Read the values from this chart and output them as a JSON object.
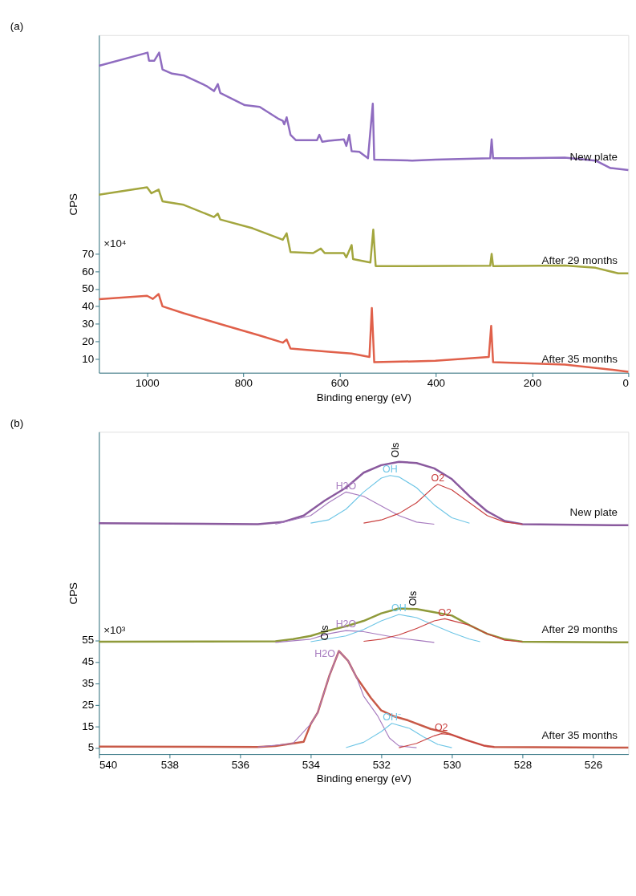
{
  "chart_data": [
    {
      "type": "line",
      "title": "(a)",
      "xlabel": "Binding energy (eV)",
      "ylabel": "CPS",
      "xlim": [
        1100,
        0
      ],
      "ylim": [
        2,
        195
      ],
      "xticks": [
        1000,
        800,
        600,
        400,
        200,
        0
      ],
      "yticks": [
        10,
        20,
        30,
        40,
        50,
        60,
        70
      ],
      "annotations": [
        "×10⁴"
      ],
      "series": [
        {
          "name": "New plate",
          "color": "#8f6cc0",
          "x": [
            1100,
            999,
            996,
            985,
            975,
            968,
            948,
            924,
            877,
            861,
            853,
            848,
            797,
            766,
            726,
            718,
            715,
            710,
            702,
            691,
            647,
            642,
            636,
            623,
            591,
            586,
            580,
            575,
            559,
            541,
            531,
            528,
            449,
            401,
            287,
            284,
            281,
            227,
            132,
            68,
            37,
            0
          ],
          "values": [
            177.5,
            185,
            180.4,
            180.4,
            185,
            175.4,
            173,
            172,
            166,
            163,
            167,
            162,
            155,
            154,
            147,
            146,
            144,
            148,
            138,
            135,
            135,
            138,
            134,
            134.6,
            135.4,
            131.7,
            138,
            128.7,
            128.3,
            124.6,
            155.8,
            123.8,
            123.3,
            123.8,
            124.6,
            135.4,
            124.6,
            124.6,
            125,
            123.3,
            119,
            117.9
          ]
        },
        {
          "name": "After 29 months",
          "color": "#a3a63e",
          "x": [
            1100,
            1000,
            991,
            976,
            968,
            924,
            861,
            853,
            848,
            781,
            718,
            710,
            702,
            655,
            639,
            631,
            591,
            586,
            575,
            572,
            536,
            530,
            525,
            449,
            287,
            284,
            281,
            132,
            68,
            21,
            0
          ],
          "values": [
            103.8,
            108,
            104.6,
            106.7,
            100,
            98,
            91,
            93,
            89.6,
            84.6,
            78,
            81.7,
            71,
            70.4,
            73,
            70.4,
            70.4,
            68,
            75,
            67,
            65,
            83.8,
            63,
            63,
            63.2,
            70,
            63,
            63.3,
            62,
            58.8,
            58.8
          ]
        },
        {
          "name": "After 35 months",
          "color": "#e0604a",
          "x": [
            1100,
            1000,
            988,
            976,
            968,
            924,
            845,
            766,
            718,
            710,
            702,
            623,
            575,
            538,
            533,
            528,
            401,
            290,
            285,
            281,
            132,
            37,
            0
          ],
          "values": [
            44,
            46,
            44.2,
            47,
            40,
            36,
            29.6,
            23.3,
            19.2,
            21,
            15.8,
            14,
            13,
            11,
            39,
            8,
            8.8,
            11,
            28.8,
            8,
            6.7,
            3.8,
            2.5
          ]
        }
      ]
    },
    {
      "type": "line",
      "title": "(b)",
      "xlabel": "Binding energy (eV)",
      "ylabel": "CPS",
      "xlim": [
        540,
        525
      ],
      "ylim": [
        2,
        152
      ],
      "xticks": [
        540,
        538,
        536,
        534,
        532,
        530,
        528,
        526
      ],
      "yticks": [
        5,
        15,
        25,
        35,
        45,
        55
      ],
      "annotations": [
        "×10³",
        {
          "text": "Ols",
          "x": 531.6,
          "y": 140
        },
        {
          "text": "Ols",
          "x": 531.1,
          "y": 71
        },
        {
          "text": "Ols",
          "x": 533.6,
          "y": 55
        }
      ],
      "series": [
        {
          "name": "New plate",
          "color": "#8a5a9e",
          "x": [
            540,
            535.5,
            534.8,
            534.2,
            533.6,
            533,
            532.5,
            532,
            531.5,
            531,
            530.5,
            530,
            529.5,
            529,
            528.5,
            528,
            525
          ],
          "values": [
            109.5,
            109,
            110,
            113,
            120,
            126,
            133,
            136.5,
            138,
            137.5,
            135,
            130,
            122,
            115,
            110.5,
            109,
            108.5
          ]
        },
        {
          "name": "H2O",
          "color": "#a77bbf",
          "x": [
            535,
            534,
            533.5,
            533,
            532.5,
            532,
            531.5,
            531,
            530.5
          ],
          "values": [
            109,
            113,
            119,
            124,
            122,
            117.5,
            113,
            110,
            109
          ]
        },
        {
          "name": "OH",
          "color": "#6fc6e6",
          "x": [
            534,
            533.5,
            533,
            532.5,
            532,
            531.75,
            531.5,
            531,
            530.5,
            530,
            529.5
          ],
          "values": [
            109.5,
            111,
            116,
            124,
            130.5,
            131.7,
            131,
            126,
            118,
            112,
            109.5
          ]
        },
        {
          "name": "O2",
          "color": "#c9403f",
          "x": [
            532.5,
            532,
            531.5,
            531,
            530.5,
            530.4,
            530,
            529.5,
            529,
            528.5,
            528
          ],
          "values": [
            109.5,
            111,
            114,
            119,
            126.5,
            127.6,
            125,
            119,
            113,
            110,
            109
          ]
        },
        {
          "name": "After 29 months",
          "color": "#8f9a3a",
          "x": [
            540,
            535,
            534.5,
            534,
            533.5,
            533,
            532.5,
            532,
            531.5,
            531,
            530.5,
            530,
            529.5,
            529,
            528.5,
            528,
            525
          ],
          "values": [
            54.3,
            54.5,
            55.5,
            57,
            59.5,
            61.5,
            64,
            67.5,
            69.8,
            69.5,
            68,
            66.5,
            62,
            58,
            55.5,
            54.3,
            54
          ]
        },
        {
          "name": "H2O",
          "color": "#a77bbf",
          "x": [
            535,
            534,
            533.5,
            533,
            532.5,
            532,
            531.5,
            531,
            530.5
          ],
          "values": [
            54,
            55.5,
            58,
            59.5,
            59,
            57.5,
            56,
            55,
            54
          ]
        },
        {
          "name": "OH",
          "color": "#6fc6e6",
          "x": [
            534,
            533,
            532.5,
            532,
            531.5,
            531,
            530.5,
            530,
            529.5,
            529.2
          ],
          "values": [
            54.3,
            57,
            60,
            64,
            67,
            65.5,
            62,
            58.5,
            55.5,
            54.3
          ]
        },
        {
          "name": "O2",
          "color": "#c9403f",
          "x": [
            532.5,
            532,
            531.5,
            531,
            530.5,
            530.2,
            529.5,
            529,
            528.5,
            528
          ],
          "values": [
            54.5,
            55.5,
            57.5,
            60.5,
            64,
            65,
            62,
            58,
            55,
            54.3
          ]
        },
        {
          "name": "After 35 months",
          "color": "#c85a48",
          "x": [
            540,
            535.5,
            535,
            534.5,
            534.2,
            534,
            533.8,
            533.47,
            533.2,
            532.94,
            532.7,
            532.3,
            532,
            531.66,
            531.24,
            530.6,
            530.17,
            529.6,
            529.1,
            528.8,
            525
          ],
          "values": [
            5.5,
            5.3,
            5.8,
            7,
            7.7,
            16,
            21.4,
            38.6,
            50,
            45.4,
            37.7,
            28.3,
            22.3,
            19.7,
            17.7,
            13.7,
            12,
            8.6,
            6,
            5.3,
            5
          ]
        },
        {
          "name": "H2O",
          "color": "#a77bbf",
          "x": [
            535.5,
            534.5,
            534,
            533.8,
            533.47,
            533.2,
            532.94,
            532.7,
            532.5,
            532.1,
            531.77,
            531.5,
            531
          ],
          "values": [
            5.3,
            7,
            16,
            21.4,
            38.6,
            50,
            45.4,
            37.7,
            29,
            19.7,
            9.5,
            5.8,
            5
          ]
        },
        {
          "name": "OH⁻",
          "color": "#6fc6e6",
          "x": [
            533,
            532.5,
            532,
            531.7,
            531.2,
            530.8,
            530.4,
            530
          ],
          "values": [
            5,
            7.5,
            12.5,
            16.3,
            14,
            10,
            6.5,
            5
          ]
        },
        {
          "name": "O2",
          "color": "#c9403f",
          "x": [
            531.5,
            531,
            530.5,
            530.3,
            530,
            529.5,
            529,
            528.8
          ],
          "values": [
            5,
            7,
            10.5,
            11.5,
            11,
            8,
            5.5,
            5.3
          ]
        }
      ]
    }
  ]
}
